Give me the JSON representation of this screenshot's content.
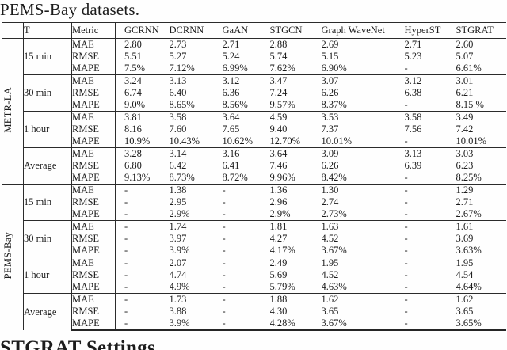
{
  "page": {
    "caption_tail": "PEMS-Bay datasets.",
    "footer_heading": "STGRAT Settings"
  },
  "table": {
    "corner_label": "",
    "col_headers": [
      "T",
      "Metric",
      "GCRNN",
      "DCRNN",
      "GaAN",
      "STGCN",
      "Graph WaveNet",
      "HyperST",
      "STGRAT"
    ],
    "groups": [
      {
        "dataset": "METR-LA",
        "blocks": [
          {
            "t": "15 min",
            "rows": [
              {
                "metric": "MAE",
                "values": [
                  "2.80",
                  "2.73",
                  "2.71",
                  "2.88",
                  "2.69",
                  "2.71",
                  "2.60"
                ],
                "bold": [
                  6
                ]
              },
              {
                "metric": "RMSE",
                "values": [
                  "5.51",
                  "5.27",
                  "5.24",
                  "5.74",
                  "5.15",
                  "5.23",
                  "5.07"
                ],
                "bold": [
                  6
                ]
              },
              {
                "metric": "MAPE",
                "values": [
                  "7.5%",
                  "7.12%",
                  "6.99%",
                  "7.62%",
                  "6.90%",
                  "-",
                  "6.61%"
                ],
                "bold": [
                  6
                ]
              }
            ]
          },
          {
            "t": "30 min",
            "rows": [
              {
                "metric": "MAE",
                "values": [
                  "3.24",
                  "3.13",
                  "3.12",
                  "3.47",
                  "3.07",
                  "3.12",
                  "3.01"
                ],
                "bold": [
                  6
                ]
              },
              {
                "metric": "RMSE",
                "values": [
                  "6.74",
                  "6.40",
                  "6.36",
                  "7.24",
                  "6.26",
                  "6.38",
                  "6.21"
                ],
                "bold": [
                  6
                ]
              },
              {
                "metric": "MAPE",
                "values": [
                  "9.0%",
                  "8.65%",
                  "8.56%",
                  "9.57%",
                  "8.37%",
                  "-",
                  "8.15 %"
                ],
                "bold": [
                  6
                ]
              }
            ]
          },
          {
            "t": "1 hour",
            "rows": [
              {
                "metric": "MAE",
                "values": [
                  "3.81",
                  "3.58",
                  "3.64",
                  "4.59",
                  "3.53",
                  "3.58",
                  "3.49"
                ],
                "bold": [
                  6
                ]
              },
              {
                "metric": "RMSE",
                "values": [
                  "8.16",
                  "7.60",
                  "7.65",
                  "9.40",
                  "7.37",
                  "7.56",
                  "7.42"
                ],
                "bold": [
                  4
                ]
              },
              {
                "metric": "MAPE",
                "values": [
                  "10.9%",
                  "10.43%",
                  "10.62%",
                  "12.70%",
                  "10.01%",
                  "-",
                  "10.01%"
                ],
                "bold": [
                  4,
                  6
                ]
              }
            ]
          },
          {
            "t": "Average",
            "rows": [
              {
                "metric": "MAE",
                "values": [
                  "3.28",
                  "3.14",
                  "3.16",
                  "3.64",
                  "3.09",
                  "3.13",
                  "3.03"
                ],
                "bold": [
                  6
                ]
              },
              {
                "metric": "RMSE",
                "values": [
                  "6.80",
                  "6.42",
                  "6.41",
                  "7.46",
                  "6.26",
                  "6.39",
                  "6.23"
                ],
                "bold": [
                  6
                ]
              },
              {
                "metric": "MAPE",
                "values": [
                  "9.13%",
                  "8.73%",
                  "8.72%",
                  "9.96%",
                  "8.42%",
                  "-",
                  "8.25%"
                ],
                "bold": [
                  6
                ]
              }
            ]
          }
        ]
      },
      {
        "dataset": "PEMS-Bay",
        "blocks": [
          {
            "t": "15 min",
            "rows": [
              {
                "metric": "MAE",
                "values": [
                  "-",
                  "1.38",
                  "-",
                  "1.36",
                  "1.30",
                  "-",
                  "1.29"
                ],
                "bold": [
                  6
                ]
              },
              {
                "metric": "RMSE",
                "values": [
                  "-",
                  "2.95",
                  "-",
                  "2.96",
                  "2.74",
                  "-",
                  "2.71"
                ],
                "bold": [
                  6
                ]
              },
              {
                "metric": "MAPE",
                "values": [
                  "-",
                  "2.9%",
                  "-",
                  "2.9%",
                  "2.73%",
                  "-",
                  "2.67%"
                ],
                "bold": [
                  6
                ]
              }
            ]
          },
          {
            "t": "30 min",
            "rows": [
              {
                "metric": "MAE",
                "values": [
                  "-",
                  "1.74",
                  "-",
                  "1.81",
                  "1.63",
                  "-",
                  "1.61"
                ],
                "bold": [
                  6
                ]
              },
              {
                "metric": "RMSE",
                "values": [
                  "-",
                  "3.97",
                  "-",
                  "4.27",
                  "4.52",
                  "-",
                  "3.69"
                ],
                "bold": [
                  6
                ]
              },
              {
                "metric": "MAPE",
                "values": [
                  "-",
                  "3.9%",
                  "-",
                  "4.17%",
                  "3.67%",
                  "-",
                  "3.63%"
                ],
                "bold": [
                  6
                ]
              }
            ]
          },
          {
            "t": "1 hour",
            "rows": [
              {
                "metric": "MAE",
                "values": [
                  "-",
                  "2.07",
                  "-",
                  "2.49",
                  "1.95",
                  "-",
                  "1.95"
                ],
                "bold": [
                  4,
                  6
                ]
              },
              {
                "metric": "RMSE",
                "values": [
                  "-",
                  "4.74",
                  "-",
                  "5.69",
                  "4.52",
                  "-",
                  "4.54"
                ],
                "bold": [
                  4
                ]
              },
              {
                "metric": "MAPE",
                "values": [
                  "-",
                  "4.9%",
                  "-",
                  "5.79%",
                  "4.63%",
                  "-",
                  "4.64%"
                ],
                "bold": [
                  4
                ]
              }
            ]
          },
          {
            "t": "Average",
            "rows": [
              {
                "metric": "MAE",
                "values": [
                  "-",
                  "1.73",
                  "-",
                  "1.88",
                  "1.62",
                  "-",
                  "1.62"
                ],
                "bold": [
                  4,
                  6
                ]
              },
              {
                "metric": "RMSE",
                "values": [
                  "-",
                  "3.88",
                  "-",
                  "4.30",
                  "3.65",
                  "-",
                  "3.65"
                ],
                "bold": [
                  4,
                  6
                ]
              },
              {
                "metric": "MAPE",
                "values": [
                  "-",
                  "3.9%",
                  "-",
                  "4.28%",
                  "3.67%",
                  "-",
                  "3.65%"
                ],
                "bold": [
                  6
                ]
              }
            ]
          }
        ]
      }
    ]
  }
}
